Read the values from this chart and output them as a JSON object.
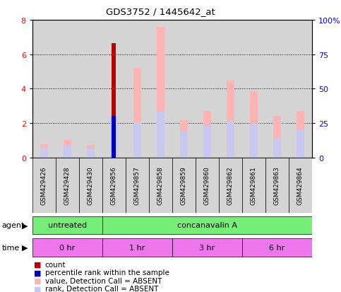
{
  "title": "GDS3752 / 1445642_at",
  "samples": [
    "GSM429426",
    "GSM429428",
    "GSM429430",
    "GSM429856",
    "GSM429857",
    "GSM429858",
    "GSM429859",
    "GSM429860",
    "GSM429862",
    "GSM429861",
    "GSM429863",
    "GSM429864"
  ],
  "count_values": [
    0,
    0,
    0,
    6.65,
    0,
    0,
    0,
    0,
    0,
    0,
    0,
    0
  ],
  "percentile_values": [
    0,
    0,
    0,
    2.4,
    0,
    0,
    0,
    0,
    0,
    0,
    0,
    0
  ],
  "value_absent": [
    0.75,
    1.0,
    0.72,
    2.4,
    5.2,
    7.6,
    2.15,
    2.7,
    4.45,
    3.85,
    2.4,
    2.7
  ],
  "rank_absent": [
    0.55,
    0.72,
    0.52,
    2.38,
    2.05,
    2.65,
    1.5,
    1.85,
    2.1,
    1.9,
    1.12,
    1.6
  ],
  "ylim": [
    0,
    8
  ],
  "y2lim": [
    0,
    100
  ],
  "yticks": [
    0,
    2,
    4,
    6,
    8
  ],
  "y2ticks": [
    0,
    25,
    50,
    75,
    100
  ],
  "y2labels": [
    "0",
    "25",
    "50",
    "75",
    "100%"
  ],
  "agent_labels": [
    "untreated",
    "concanavalin A"
  ],
  "agent_color": "#77ee77",
  "time_labels": [
    "0 hr",
    "1 hr",
    "3 hr",
    "6 hr"
  ],
  "time_color": "#ee77ee",
  "count_color": "#bb0000",
  "percentile_color": "#0000bb",
  "value_absent_color": "#ffb3b3",
  "rank_absent_color": "#c8c8f0",
  "cell_bg_color": "#d4d4d4",
  "plot_bg": "#ffffff",
  "bar_width": 0.18
}
